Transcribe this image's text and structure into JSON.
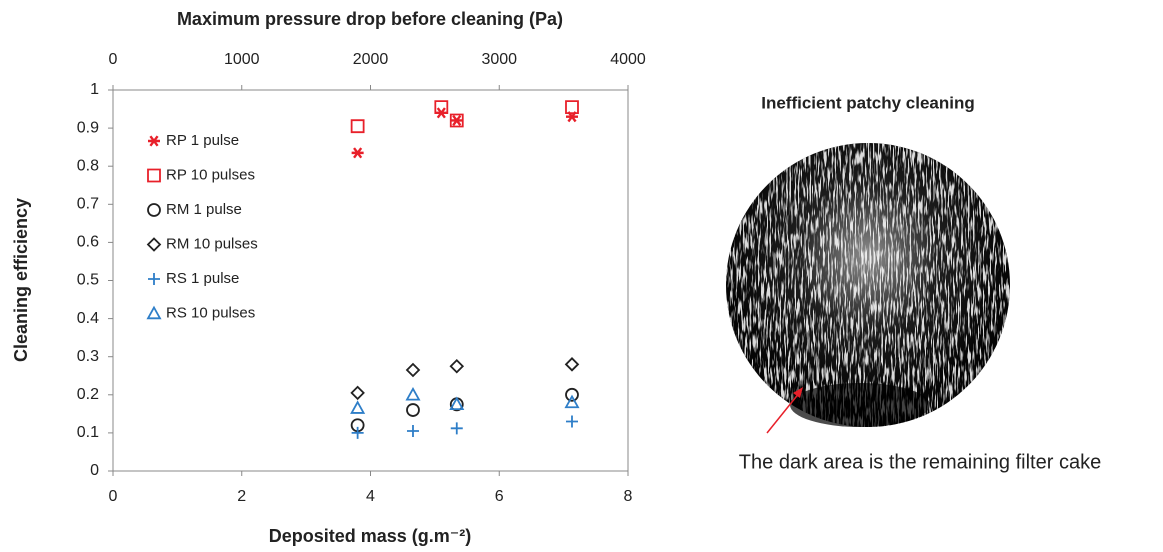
{
  "chart_data": {
    "type": "scatter",
    "x_label": "Deposited mass (g.m⁻²)",
    "x2_label": "Maximum pressure drop before cleaning (Pa)",
    "y_label": "Cleaning efficiency",
    "xlim": [
      0,
      8
    ],
    "xticks": [
      0,
      2,
      4,
      6,
      8
    ],
    "x2lim": [
      0,
      4000
    ],
    "x2ticks": [
      0,
      1000,
      2000,
      3000,
      4000
    ],
    "ylim": [
      0,
      1
    ],
    "yticks": [
      0,
      0.1,
      0.2,
      0.3,
      0.4,
      0.5,
      0.6,
      0.7,
      0.8,
      0.9,
      1
    ],
    "grid": false,
    "legend": "upper left",
    "series": [
      {
        "name": "RP 1 pulse",
        "color": "#e8202a",
        "marker": "asterisk",
        "x": [
          3.8,
          5.1,
          5.34,
          7.13
        ],
        "values": [
          0.835,
          0.94,
          0.92,
          0.93
        ]
      },
      {
        "name": "RP 10 pulses",
        "color": "#e8202a",
        "marker": "square",
        "x": [
          3.8,
          5.1,
          5.34,
          7.13
        ],
        "values": [
          0.905,
          0.955,
          0.92,
          0.955
        ]
      },
      {
        "name": "RM 1 pulse",
        "color": "#222222",
        "marker": "circle",
        "x": [
          3.8,
          4.66,
          5.34,
          7.13
        ],
        "values": [
          0.12,
          0.16,
          0.175,
          0.2
        ]
      },
      {
        "name": "RM 10 pulses",
        "color": "#222222",
        "marker": "diamond",
        "x": [
          3.8,
          4.66,
          5.34,
          7.13
        ],
        "values": [
          0.205,
          0.265,
          0.275,
          0.28
        ]
      },
      {
        "name": "RS 1 pulse",
        "color": "#2e7ec8",
        "marker": "plus",
        "x": [
          3.8,
          4.66,
          5.34,
          7.13
        ],
        "values": [
          0.1,
          0.105,
          0.112,
          0.13
        ]
      },
      {
        "name": "RS 10 pulses",
        "color": "#2e7ec8",
        "marker": "triangle",
        "x": [
          3.8,
          4.66,
          5.34,
          7.13
        ],
        "values": [
          0.165,
          0.2,
          0.175,
          0.18
        ]
      }
    ]
  },
  "image": {
    "title": "Inefficient patchy cleaning",
    "caption": "The dark area is the remaining filter cake"
  }
}
